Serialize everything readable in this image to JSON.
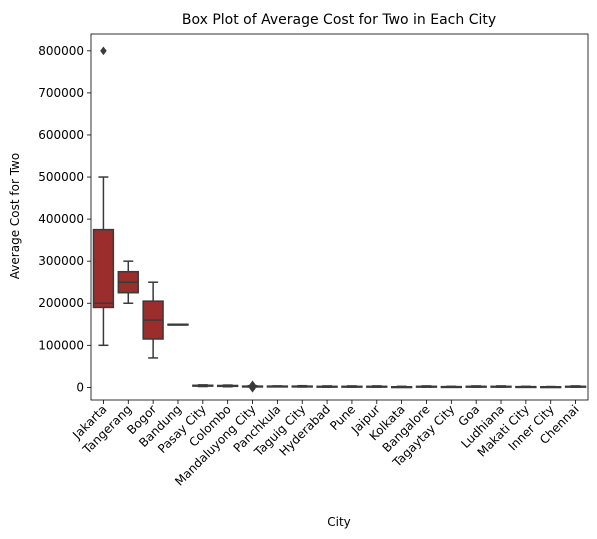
{
  "chart_data": {
    "type": "box",
    "title": "Box Plot of Average Cost for Two in Each City",
    "xlabel": "City",
    "ylabel": "Average Cost for Two",
    "ylim": [
      -30000,
      840000
    ],
    "yticks": [
      0,
      100000,
      200000,
      300000,
      400000,
      500000,
      600000,
      700000,
      800000
    ],
    "ytick_labels": [
      "0",
      "100000",
      "200000",
      "300000",
      "400000",
      "500000",
      "600000",
      "700000",
      "800000"
    ],
    "grid": false,
    "box_color": "#9b2d2d",
    "line_color": "#3a3a3a",
    "categories": [
      "Jakarta",
      "Tangerang",
      "Bogor",
      "Bandung",
      "Pasay City",
      "Colombo",
      "Mandaluyong City",
      "Panchkula",
      "Taguig City",
      "Hyderabad",
      "Pune",
      "Jaipur",
      "Kolkata",
      "Bangalore",
      "Tagaytay City",
      "Goa",
      "Ludhiana",
      "Makati City",
      "Inner City",
      "Chennai"
    ],
    "boxes": [
      {
        "whisker_low": 100000,
        "q1": 190000,
        "median": 200000,
        "q3": 375000,
        "whisker_high": 500000,
        "outliers": [
          800000
        ]
      },
      {
        "whisker_low": 200000,
        "q1": 225000,
        "median": 250000,
        "q3": 275000,
        "whisker_high": 300000,
        "outliers": []
      },
      {
        "whisker_low": 70000,
        "q1": 115000,
        "median": 160000,
        "q3": 205000,
        "whisker_high": 250000,
        "outliers": []
      },
      {
        "whisker_low": 150000,
        "q1": 150000,
        "median": 150000,
        "q3": 150000,
        "whisker_high": 150000,
        "outliers": []
      },
      {
        "whisker_low": 2000,
        "q1": 3000,
        "median": 4000,
        "q3": 5000,
        "whisker_high": 6000,
        "outliers": []
      },
      {
        "whisker_low": 1500,
        "q1": 2500,
        "median": 3500,
        "q3": 4500,
        "whisker_high": 5500,
        "outliers": []
      },
      {
        "whisker_low": 1000,
        "q1": 1500,
        "median": 2000,
        "q3": 3000,
        "whisker_high": 4000,
        "outliers": [
          -2000,
          0,
          1000,
          4000,
          6000
        ]
      },
      {
        "whisker_low": 1500,
        "q1": 2000,
        "median": 2500,
        "q3": 3000,
        "whisker_high": 3500,
        "outliers": []
      },
      {
        "whisker_low": 1000,
        "q1": 1500,
        "median": 2000,
        "q3": 3000,
        "whisker_high": 4000,
        "outliers": []
      },
      {
        "whisker_low": 500,
        "q1": 1000,
        "median": 1500,
        "q3": 2500,
        "whisker_high": 3500,
        "outliers": []
      },
      {
        "whisker_low": 500,
        "q1": 1000,
        "median": 1500,
        "q3": 2500,
        "whisker_high": 3500,
        "outliers": []
      },
      {
        "whisker_low": 500,
        "q1": 1000,
        "median": 1500,
        "q3": 2500,
        "whisker_high": 3500,
        "outliers": []
      },
      {
        "whisker_low": 300,
        "q1": 700,
        "median": 1000,
        "q3": 1500,
        "whisker_high": 2500,
        "outliers": []
      },
      {
        "whisker_low": 500,
        "q1": 1000,
        "median": 1500,
        "q3": 2500,
        "whisker_high": 3500,
        "outliers": []
      },
      {
        "whisker_low": 500,
        "q1": 800,
        "median": 1200,
        "q3": 1800,
        "whisker_high": 2500,
        "outliers": []
      },
      {
        "whisker_low": 500,
        "q1": 1000,
        "median": 1500,
        "q3": 2500,
        "whisker_high": 3500,
        "outliers": []
      },
      {
        "whisker_low": 500,
        "q1": 1000,
        "median": 1500,
        "q3": 2500,
        "whisker_high": 3500,
        "outliers": []
      },
      {
        "whisker_low": 500,
        "q1": 800,
        "median": 1200,
        "q3": 1800,
        "whisker_high": 2500,
        "outliers": []
      },
      {
        "whisker_low": 500,
        "q1": 800,
        "median": 1000,
        "q3": 1500,
        "whisker_high": 2000,
        "outliers": []
      },
      {
        "whisker_low": 500,
        "q1": 1000,
        "median": 1500,
        "q3": 2500,
        "whisker_high": 3500,
        "outliers": []
      }
    ]
  }
}
